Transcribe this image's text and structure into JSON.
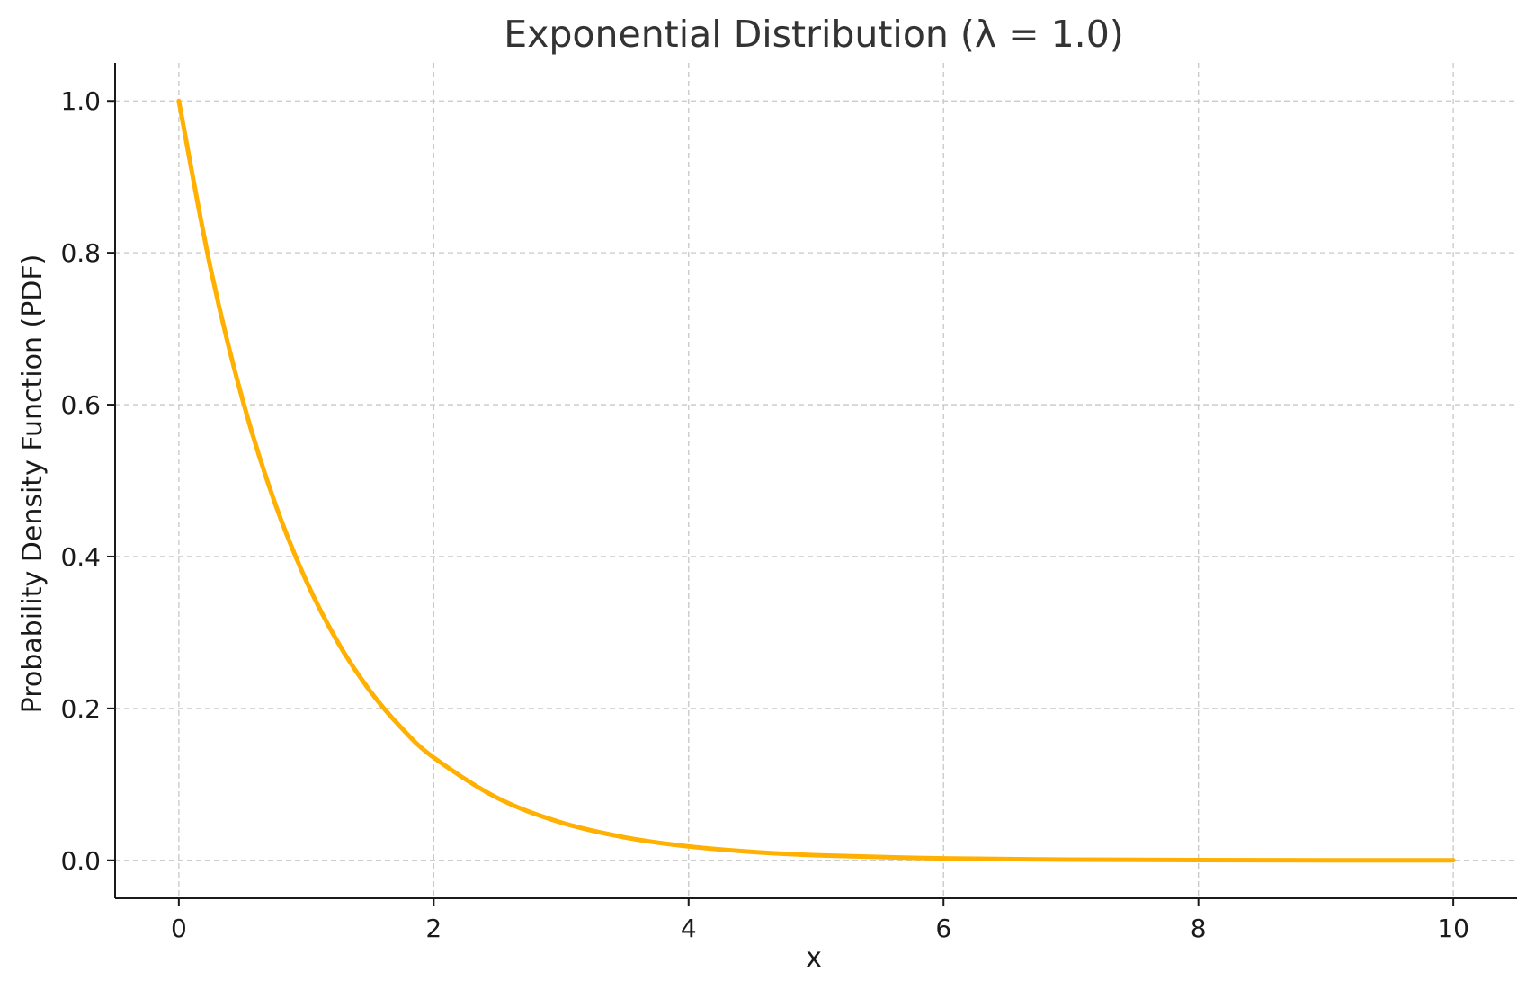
{
  "chart_data": {
    "type": "line",
    "title": "Exponential Distribution (λ = 1.0)",
    "xlabel": "x",
    "ylabel": "Probability Density Function (PDF)",
    "xlim": [
      -0.5,
      10.5
    ],
    "ylim": [
      -0.05,
      1.05
    ],
    "x_ticks": [
      0,
      2,
      4,
      6,
      8,
      10
    ],
    "x_tick_labels": [
      "0",
      "2",
      "4",
      "6",
      "8",
      "10"
    ],
    "y_ticks": [
      0.0,
      0.2,
      0.4,
      0.6,
      0.8,
      1.0
    ],
    "y_tick_labels": [
      "0.0",
      "0.2",
      "0.4",
      "0.6",
      "0.8",
      "1.0"
    ],
    "grid": true,
    "colors": {
      "line": "#FFB000"
    },
    "series": [
      {
        "x": [
          0,
          0.25,
          0.5,
          0.75,
          1,
          1.25,
          1.5,
          1.75,
          2,
          2.5,
          3,
          3.5,
          4,
          4.5,
          5,
          6,
          7,
          8,
          9,
          10
        ],
        "values": [
          1.0,
          0.7788,
          0.6065,
          0.4724,
          0.3679,
          0.2865,
          0.2231,
          0.1738,
          0.1353,
          0.0821,
          0.0498,
          0.0302,
          0.0183,
          0.0111,
          0.0067,
          0.0025,
          0.0009,
          0.0003,
          0.0001,
          0.0
        ]
      }
    ]
  }
}
